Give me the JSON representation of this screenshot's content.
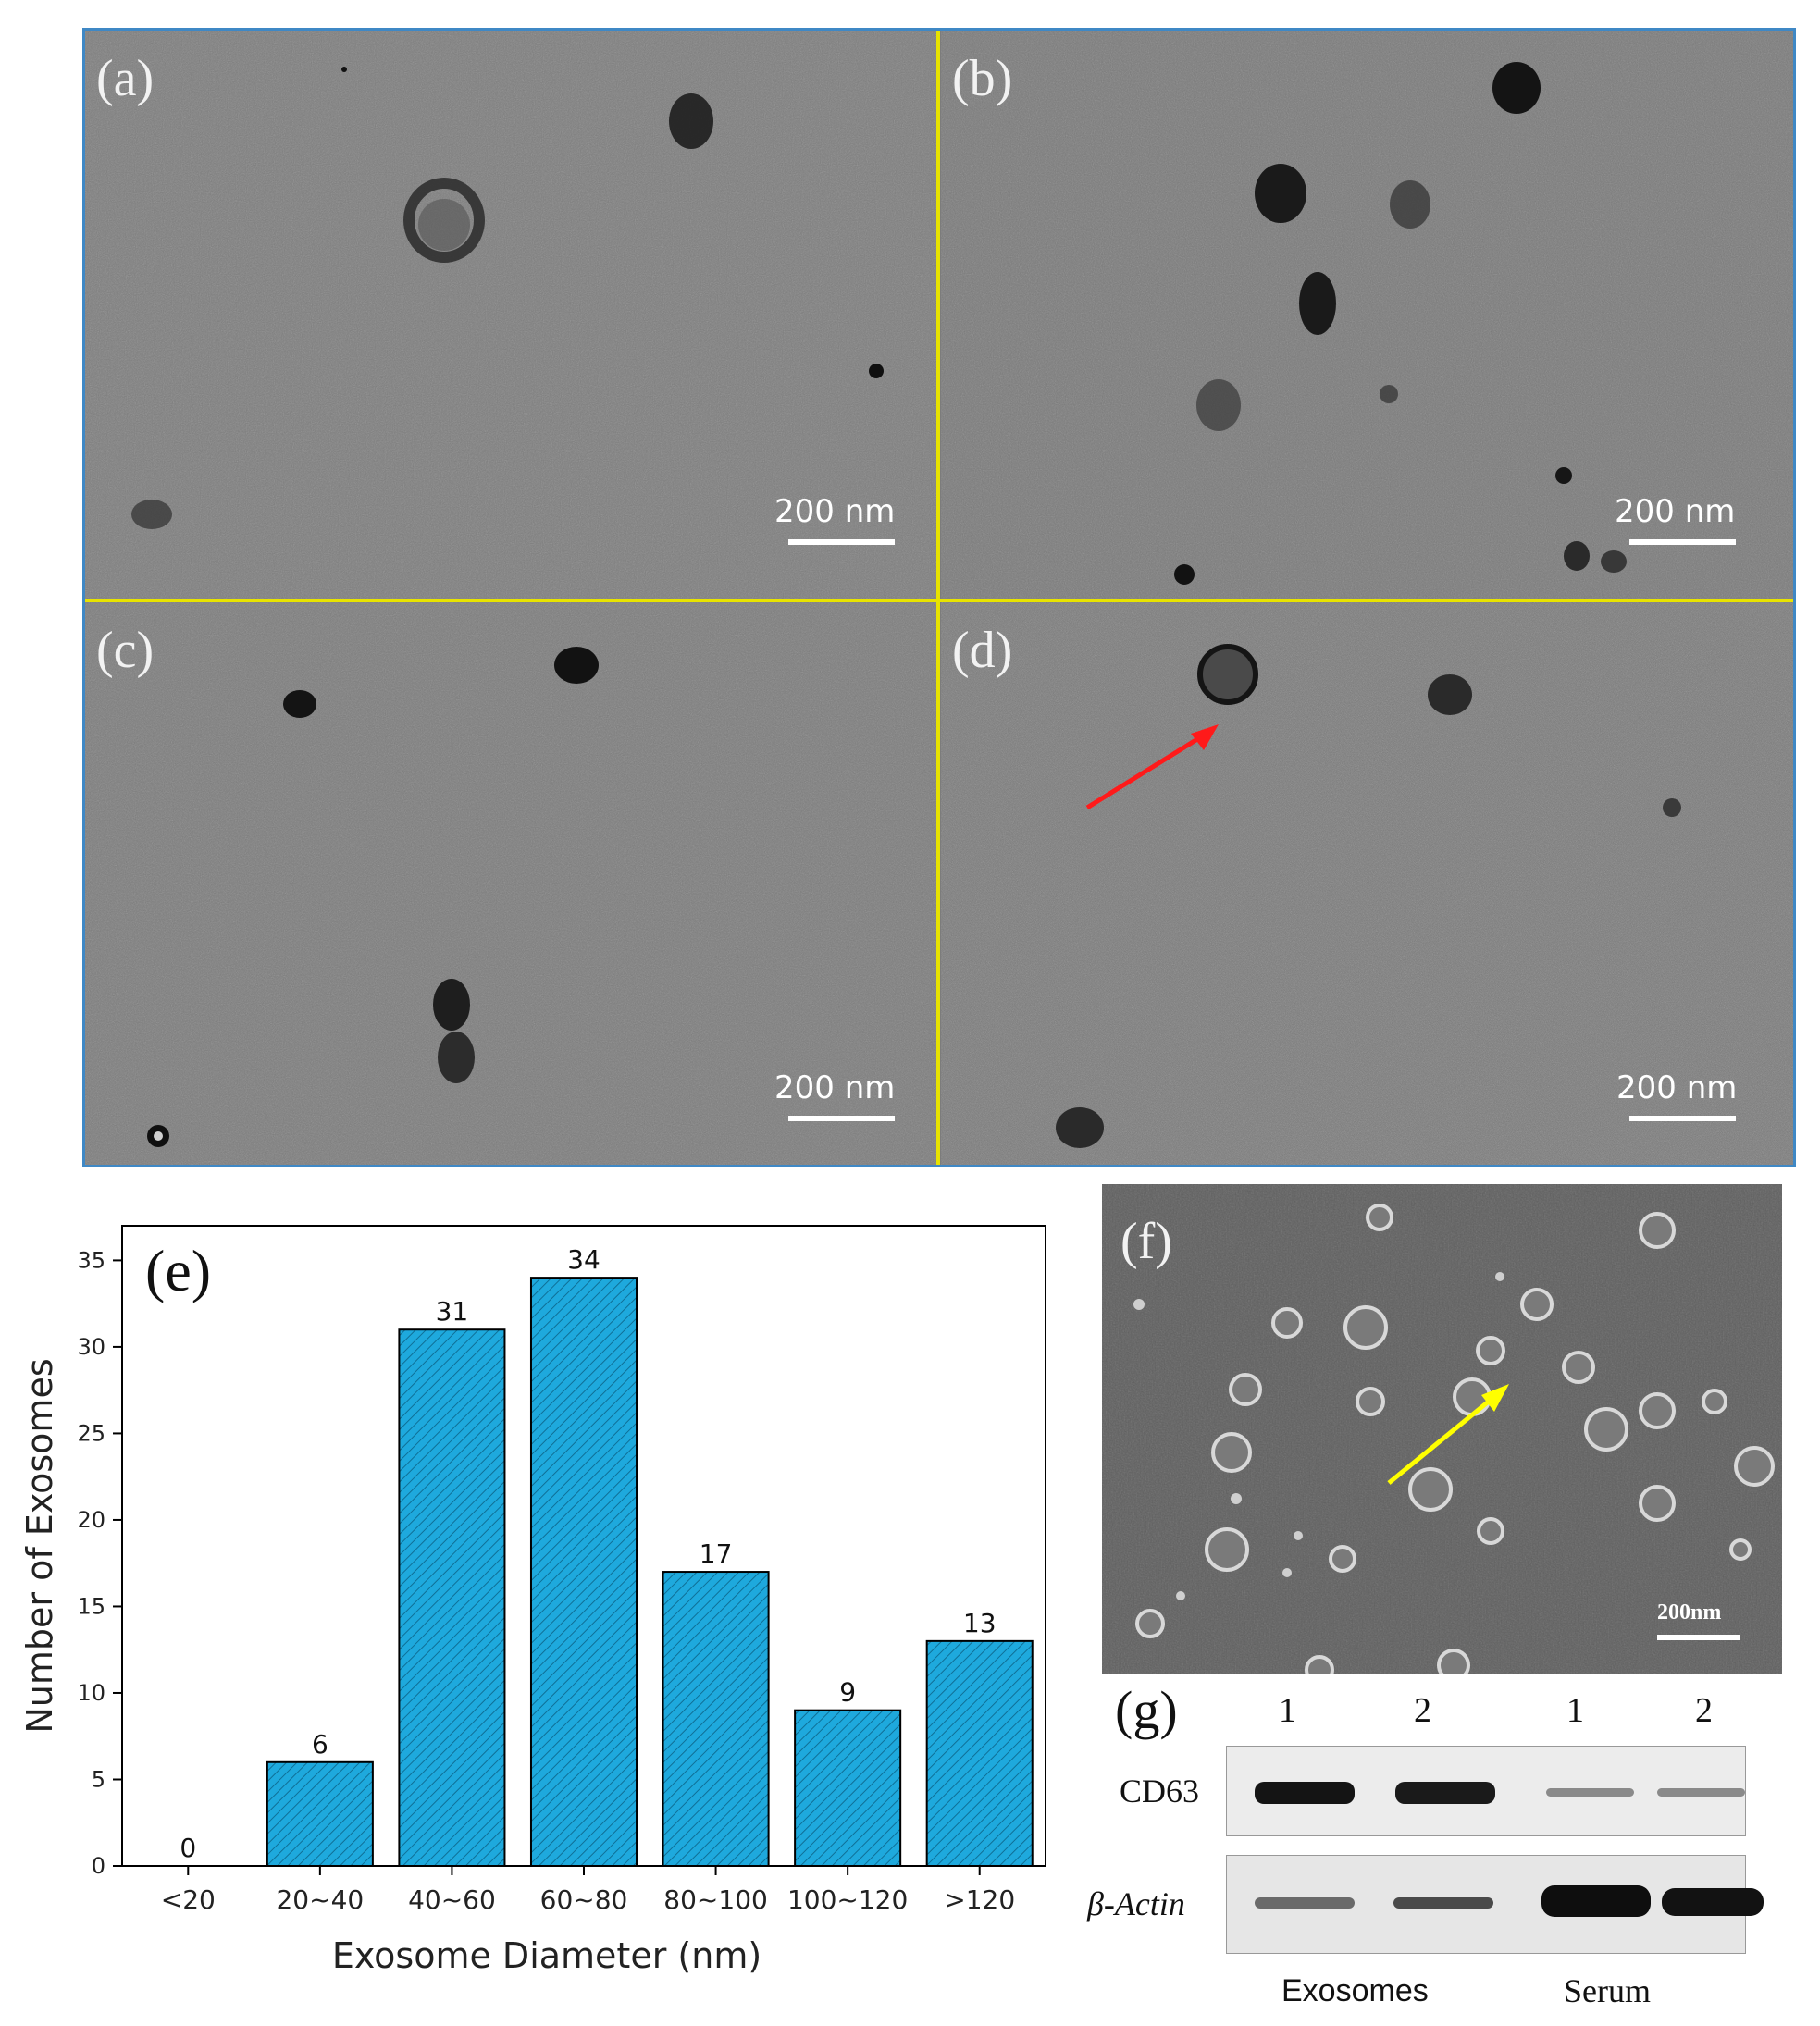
{
  "tem_panels": [
    {
      "letter": "(a)",
      "scalebar": "200 nm"
    },
    {
      "letter": "(b)",
      "scalebar": "200 nm"
    },
    {
      "letter": "(c)",
      "scalebar": "200 nm"
    },
    {
      "letter": "(d)",
      "scalebar": "200 nm"
    }
  ],
  "sem": {
    "letter": "(f)",
    "scalebar": "200nm"
  },
  "western_blot": {
    "letter": "(g)",
    "lanes": [
      "1",
      "2",
      "1",
      "2"
    ],
    "rows": [
      "CD63",
      "β-Actin"
    ],
    "groups": [
      "Exosomes",
      "Serum"
    ]
  },
  "chart_data": {
    "type": "bar",
    "panel_letter": "(e)",
    "categories": [
      "<20",
      "20~40",
      "40~60",
      "60~80",
      "80~100",
      "100~120",
      ">120"
    ],
    "values": [
      0,
      6,
      31,
      34,
      17,
      9,
      13
    ],
    "xlabel": "Exosome Diameter (nm)",
    "ylabel": "Number of Exosomes",
    "ylim": [
      0,
      37
    ],
    "yticks": [
      0,
      5,
      10,
      15,
      20,
      25,
      30,
      35
    ],
    "bar_color": "#1ea9dd",
    "grid": false
  },
  "colors": {
    "divider": "#e8e300",
    "frame": "#3f88c5",
    "red_arrow": "#ff1a1a",
    "yellow_arrow": "#ffff00"
  }
}
